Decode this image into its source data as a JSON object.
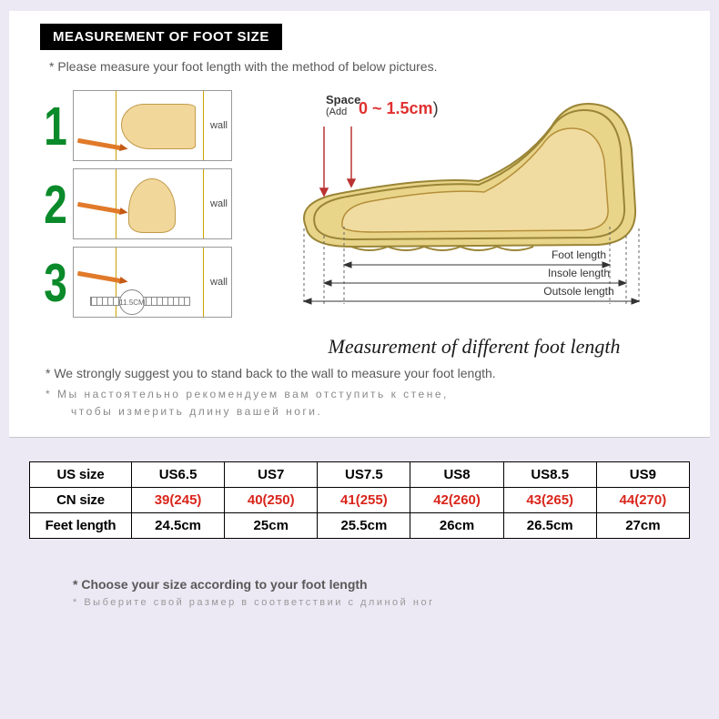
{
  "header": {
    "title": "MEASUREMENT OF FOOT SIZE",
    "subtitle": "*  Please measure your foot length with the method of below pictures."
  },
  "steps": {
    "items": [
      {
        "num": "1",
        "wall": "wall"
      },
      {
        "num": "2",
        "wall": "wall"
      },
      {
        "num": "3",
        "wall": "wall",
        "circle": "11.5CM"
      }
    ]
  },
  "shoe": {
    "space_label": "Space",
    "space_add": "(Add",
    "space_value": "0 ~ 1.5cm",
    "space_close": ")",
    "len1": "Foot length",
    "len2": "Insole length",
    "len3": "Outsole length",
    "caption": "Measurement of different foot length"
  },
  "notes": {
    "en": "*  We strongly suggest you to stand back to the wall to measure  your foot length.",
    "ru1": "*  Мы настоятельно рекомендуем вам отступить к стене,",
    "ru2": "чтобы  измерить  длину  вашей  ноги."
  },
  "table": {
    "rows": [
      {
        "head": "US size",
        "cells": [
          "US6.5",
          "US7",
          "US7.5",
          "US8",
          "US8.5",
          "US9"
        ],
        "cls": "us"
      },
      {
        "head": "CN size",
        "cells": [
          "39(245)",
          "40(250)",
          "41(255)",
          "42(260)",
          "43(265)",
          "44(270)"
        ],
        "cls": "cn"
      },
      {
        "head": "Feet length",
        "cells": [
          "24.5cm",
          "25cm",
          "25.5cm",
          "26cm",
          "26.5cm",
          "27cm"
        ],
        "cls": "len"
      }
    ]
  },
  "bottom": {
    "en": "*   Choose your size according to your foot length",
    "ru": "*   Выберите свой размер в соответствии с длиной ног"
  },
  "colors": {
    "page_bg": "#ece8f4",
    "card_bg": "#ffffff",
    "title_bg": "#000000",
    "title_fg": "#ffffff",
    "text_gray": "#595959",
    "text_light": "#8a8a8a",
    "step_num": "#0a8a2a",
    "cn_red": "#d9261c",
    "space_red": "#e03030",
    "table_border": "#000000"
  }
}
